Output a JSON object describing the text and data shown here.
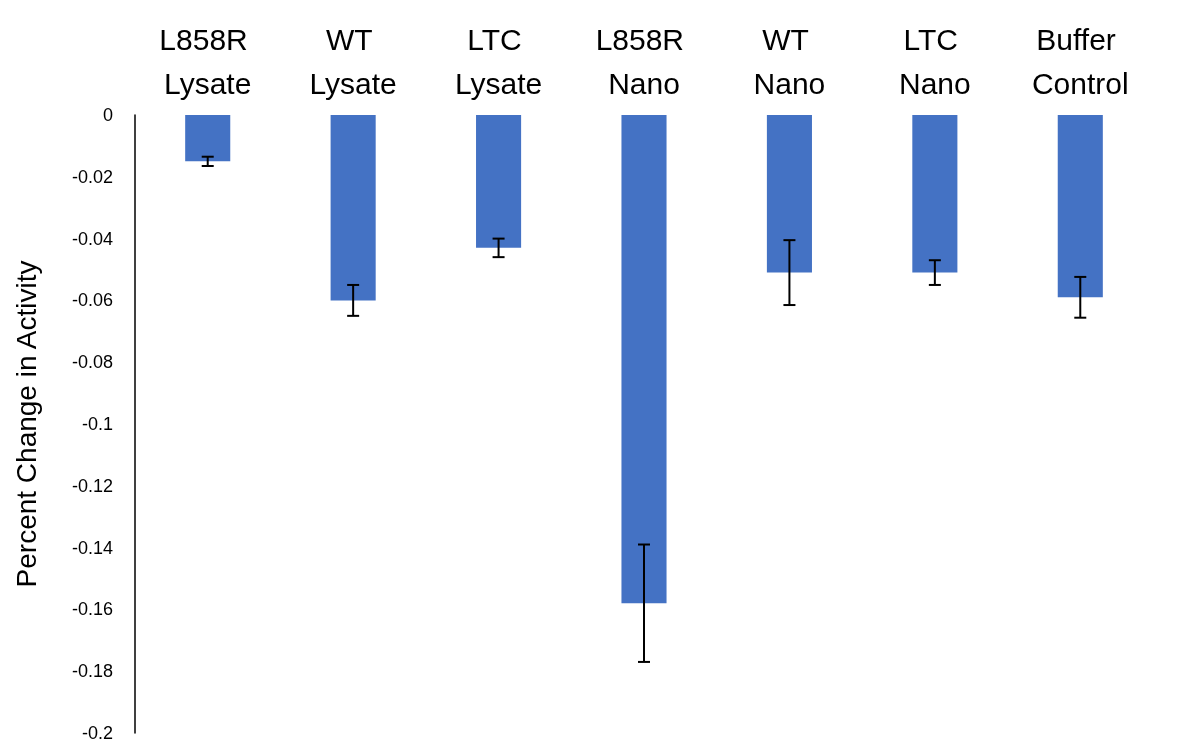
{
  "chart_data": {
    "type": "bar",
    "ylabel": "Percent Change in Activity",
    "categories": [
      "L858R Lysate",
      "WT Lysate",
      "LTC Lysate",
      "L858R Nano",
      "WT Nano",
      "LTC Nano",
      "Buffer Control"
    ],
    "values": [
      -0.015,
      -0.06,
      -0.043,
      -0.158,
      -0.051,
      -0.051,
      -0.059
    ],
    "errors": [
      0.0015,
      0.005,
      0.003,
      0.019,
      0.0105,
      0.004,
      0.0066
    ],
    "color": "#4472c4",
    "ylim": [
      -0.2,
      0
    ],
    "yticks": [
      0,
      -0.02,
      -0.04,
      -0.06,
      -0.08,
      -0.1,
      -0.12,
      -0.14,
      -0.16,
      -0.18,
      -0.2
    ],
    "grid": false
  }
}
